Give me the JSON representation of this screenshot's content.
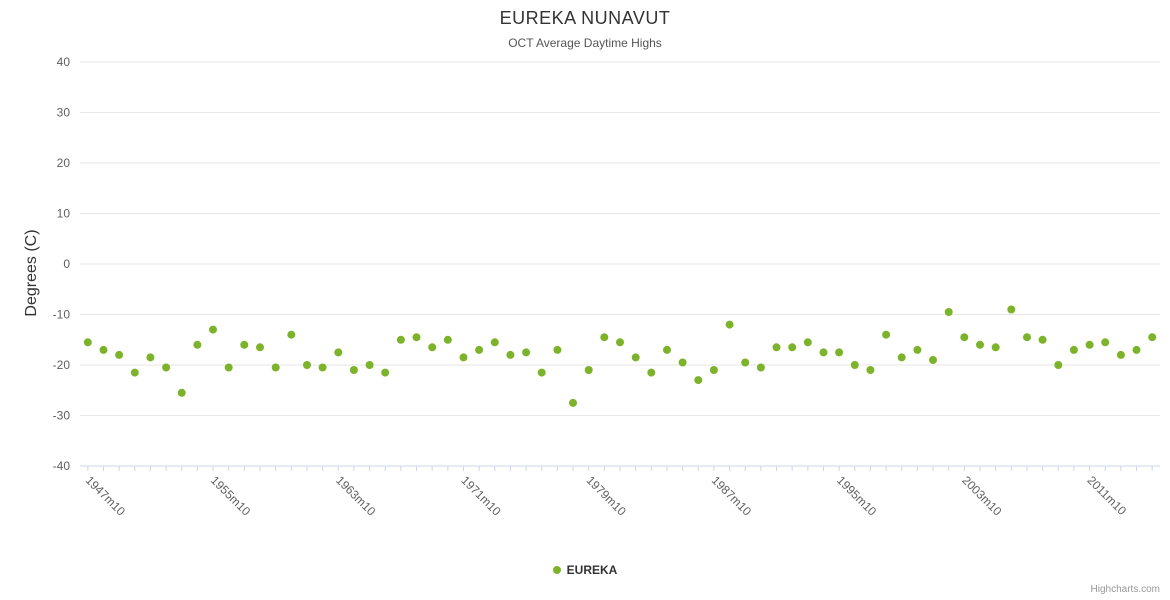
{
  "credits": "Highcharts.com",
  "colors": {
    "point": "#7db32a",
    "grid": "#e6e6e6",
    "axis": "#ccd6eb",
    "tick": "#ccd6eb",
    "label": "#606060",
    "title": "#333333",
    "subtitle": "#555555"
  },
  "chart_data": {
    "type": "scatter",
    "title": "EUREKA NUNAVUT",
    "subtitle": "OCT Average Daytime Highs",
    "xlabel": "",
    "ylabel": "Degrees (C)",
    "ylim": [
      -40,
      40
    ],
    "y_ticks": [
      40,
      30,
      20,
      10,
      0,
      -10,
      -20,
      -30,
      -40
    ],
    "grid": true,
    "legend_position": "bottom",
    "x_tick_interval": 8,
    "x_tick_labels": [
      "1947m10",
      "1955m10",
      "1963m10",
      "1971m10",
      "1979m10",
      "1987m10",
      "1995m10",
      "2003m10",
      "2011m10"
    ],
    "categories": [
      "1947m10",
      "1948m10",
      "1949m10",
      "1950m10",
      "1951m10",
      "1952m10",
      "1953m10",
      "1954m10",
      "1955m10",
      "1956m10",
      "1957m10",
      "1958m10",
      "1959m10",
      "1960m10",
      "1961m10",
      "1962m10",
      "1963m10",
      "1964m10",
      "1965m10",
      "1966m10",
      "1967m10",
      "1968m10",
      "1969m10",
      "1970m10",
      "1971m10",
      "1972m10",
      "1973m10",
      "1974m10",
      "1975m10",
      "1976m10",
      "1977m10",
      "1978m10",
      "1979m10",
      "1980m10",
      "1981m10",
      "1982m10",
      "1983m10",
      "1984m10",
      "1985m10",
      "1986m10",
      "1987m10",
      "1988m10",
      "1989m10",
      "1990m10",
      "1991m10",
      "1992m10",
      "1993m10",
      "1994m10",
      "1995m10",
      "1996m10",
      "1997m10",
      "1998m10",
      "1999m10",
      "2000m10",
      "2001m10",
      "2002m10",
      "2003m10",
      "2004m10",
      "2005m10",
      "2006m10",
      "2007m10",
      "2008m10",
      "2009m10",
      "2010m10",
      "2011m10",
      "2012m10",
      "2013m10",
      "2014m10",
      "2015m10"
    ],
    "series": [
      {
        "name": "EUREKA",
        "values": [
          -15.5,
          -17,
          -18,
          -21.5,
          -18.5,
          -20.5,
          -25.5,
          -16,
          -13,
          -20.5,
          -16,
          -16.5,
          -20.5,
          -14,
          -20,
          -20.5,
          -17.5,
          -21,
          -20,
          -21.5,
          -15,
          -14.5,
          -16.5,
          -15,
          -18.5,
          -17,
          -15.5,
          -18,
          -17.5,
          -21.5,
          -17,
          -27.5,
          -21,
          -14.5,
          -15.5,
          -18.5,
          -21.5,
          -17,
          -19.5,
          -23,
          -21,
          -12,
          -19.5,
          -20.5,
          -16.5,
          -16.5,
          -15.5,
          -17.5,
          -17.5,
          -20,
          -21,
          -14,
          -18.5,
          -17,
          -19,
          -9.5,
          -14.5,
          -16,
          -16.5,
          -9,
          -14.5,
          -15,
          -20,
          -17,
          -16,
          -15.5,
          -18,
          -17,
          -14.5
        ]
      }
    ]
  }
}
